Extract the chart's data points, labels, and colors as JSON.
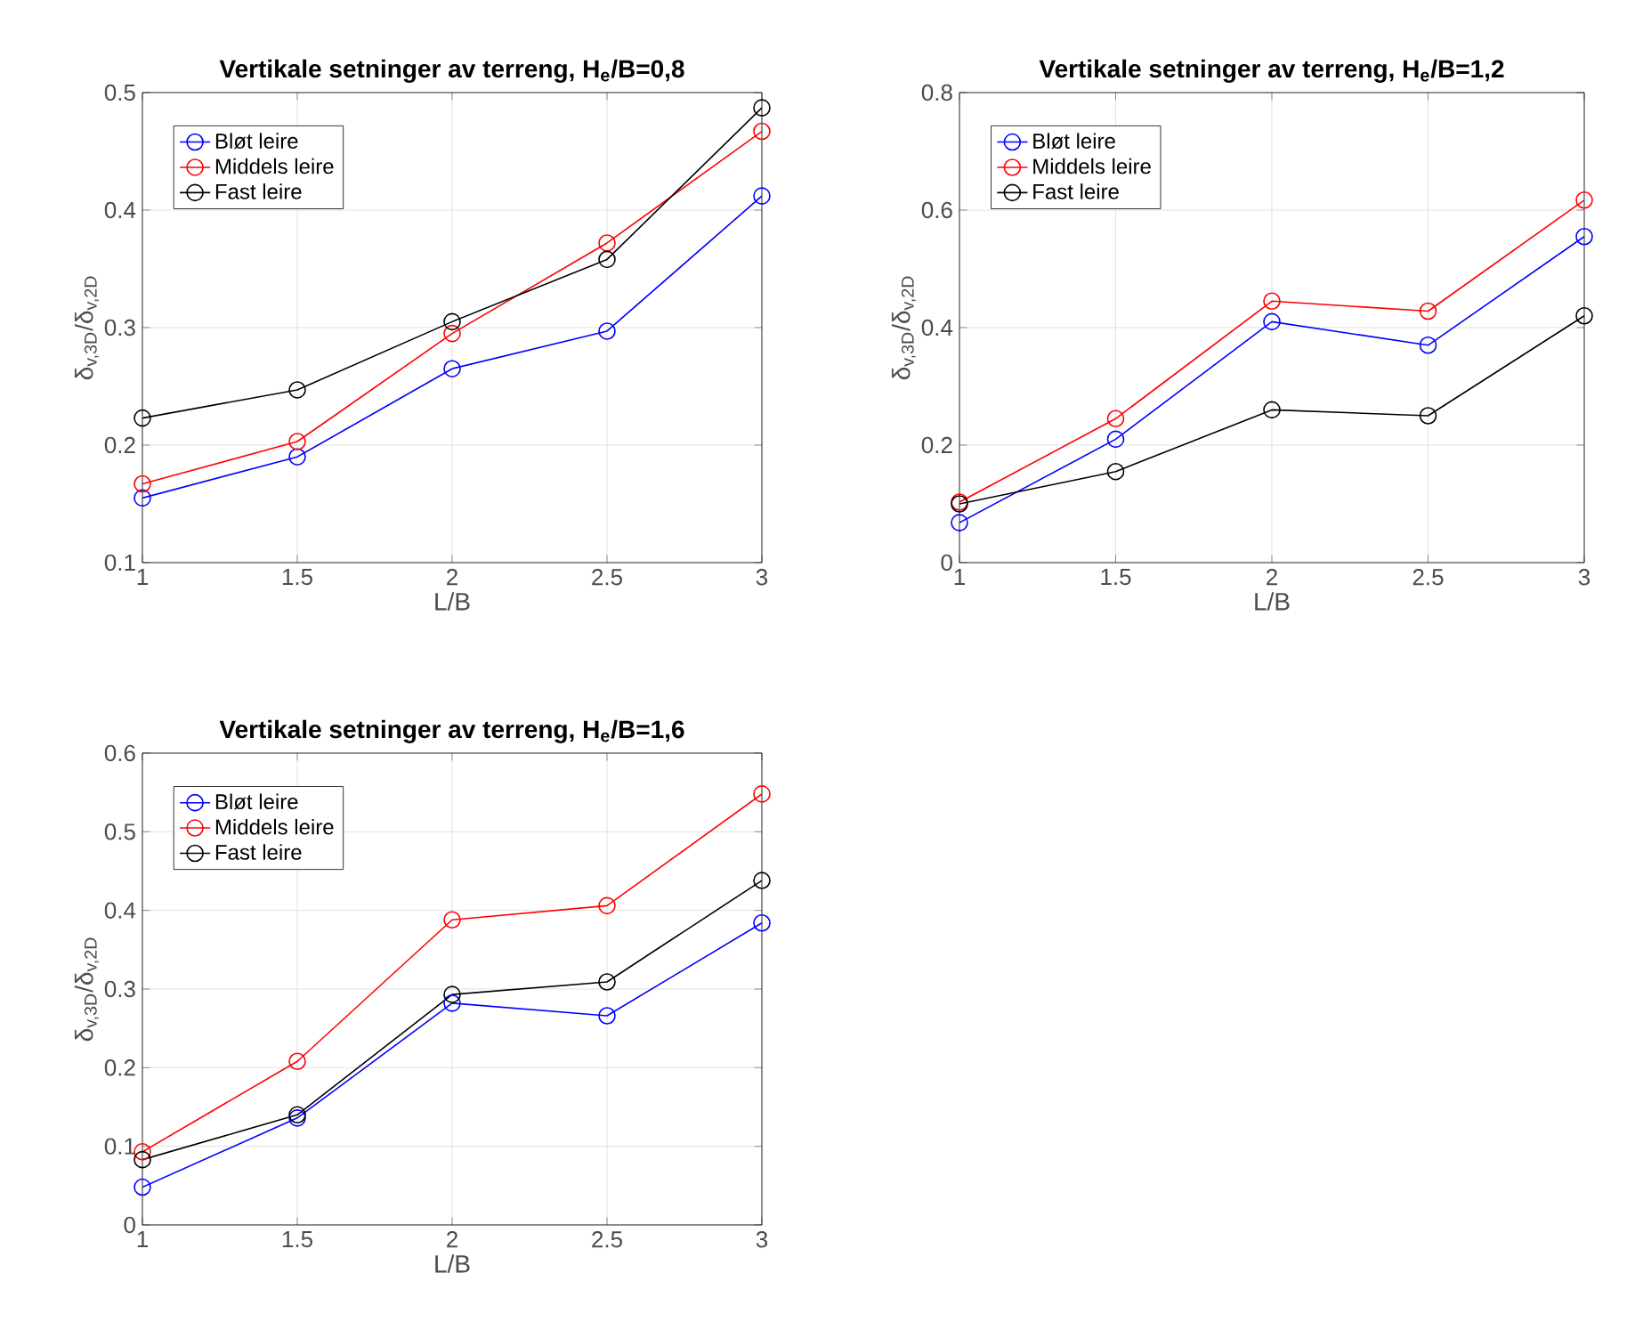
{
  "chart_data": [
    {
      "type": "line",
      "title": "Vertikale setninger av terreng, H$_{e}$/B=0,8",
      "xlabel": "L/B",
      "ylabel": "δ$_{v,3D}$/δ$_{v,2D}$",
      "x": [
        1,
        1.5,
        2,
        2.5,
        3
      ],
      "xlim": [
        1,
        3
      ],
      "xticks": [
        1,
        1.5,
        2,
        2.5,
        3
      ],
      "ylim": [
        0.1,
        0.5
      ],
      "yticks": [
        0.1,
        0.2,
        0.3,
        0.4,
        0.5
      ],
      "grid": true,
      "legend": "top left",
      "marker": "circle",
      "line_style": "solid",
      "series": [
        {
          "name": "Bløt leire",
          "color": "#0000ff",
          "values": [
            0.155,
            0.19,
            0.265,
            0.297,
            0.412
          ]
        },
        {
          "name": "Middels leire",
          "color": "#ff0000",
          "values": [
            0.167,
            0.203,
            0.295,
            0.372,
            0.467
          ]
        },
        {
          "name": "Fast leire",
          "color": "#000000",
          "values": [
            0.223,
            0.247,
            0.305,
            0.358,
            0.487
          ]
        }
      ]
    },
    {
      "type": "line",
      "title": "Vertikale setninger av terreng, H$_{e}$/B=1,2",
      "xlabel": "L/B",
      "ylabel": "δ$_{v,3D}$/δ$_{v,2D}$",
      "x": [
        1,
        1.5,
        2,
        2.5,
        3
      ],
      "xlim": [
        1,
        3
      ],
      "xticks": [
        1,
        1.5,
        2,
        2.5,
        3
      ],
      "ylim": [
        0,
        0.8
      ],
      "yticks": [
        0,
        0.2,
        0.4,
        0.6,
        0.8
      ],
      "grid": true,
      "legend": "top left",
      "marker": "circle",
      "line_style": "solid",
      "series": [
        {
          "name": "Bløt leire",
          "color": "#0000ff",
          "values": [
            0.068,
            0.21,
            0.41,
            0.37,
            0.555
          ]
        },
        {
          "name": "Middels leire",
          "color": "#ff0000",
          "values": [
            0.103,
            0.245,
            0.445,
            0.428,
            0.617
          ]
        },
        {
          "name": "Fast leire",
          "color": "#000000",
          "values": [
            0.1,
            0.155,
            0.26,
            0.25,
            0.42
          ]
        }
      ]
    },
    {
      "type": "line",
      "title": "Vertikale setninger av terreng, H$_{e}$/B=1,6",
      "xlabel": "L/B",
      "ylabel": "δ$_{v,3D}$/δ$_{v,2D}$",
      "x": [
        1,
        1.5,
        2,
        2.5,
        3
      ],
      "xlim": [
        1,
        3
      ],
      "xticks": [
        1,
        1.5,
        2,
        2.5,
        3
      ],
      "ylim": [
        0,
        0.6
      ],
      "yticks": [
        0,
        0.1,
        0.2,
        0.3,
        0.4,
        0.5,
        0.6
      ],
      "grid": true,
      "legend": "top left",
      "marker": "circle",
      "line_style": "solid",
      "series": [
        {
          "name": "Bløt leire",
          "color": "#0000ff",
          "values": [
            0.048,
            0.136,
            0.282,
            0.266,
            0.384
          ]
        },
        {
          "name": "Middels leire",
          "color": "#ff0000",
          "values": [
            0.093,
            0.208,
            0.388,
            0.406,
            0.548
          ]
        },
        {
          "name": "Fast leire",
          "color": "#000000",
          "values": [
            0.083,
            0.14,
            0.293,
            0.309,
            0.438
          ]
        }
      ]
    }
  ]
}
